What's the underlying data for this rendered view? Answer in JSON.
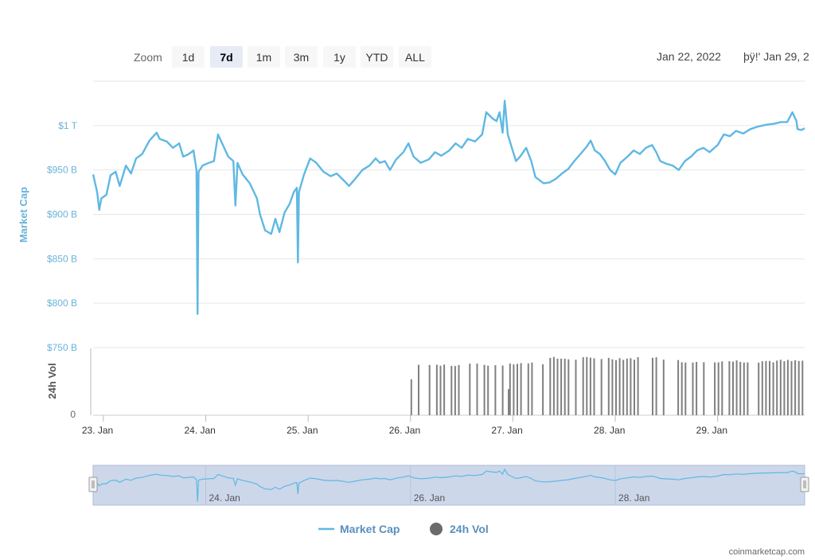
{
  "toolbar": {
    "zoom_label": "Zoom",
    "buttons": [
      "1d",
      "7d",
      "1m",
      "3m",
      "1y",
      "YTD",
      "ALL"
    ],
    "active": "7d",
    "range_from": "Jan 22, 2022",
    "range_to": "þÿ!' Jan 29, 2"
  },
  "legend": {
    "market_cap": "Market Cap",
    "volume": "24h Vol"
  },
  "credit": "coinmarketcap.com",
  "colors": {
    "market_cap": "#5fb8e3",
    "volume": "#808080",
    "navigator_fill": "#ccd7ea",
    "grid": "#e6e6e6"
  },
  "chart_data": {
    "type": "line",
    "title": "",
    "ylabel": "Market Cap",
    "vol_label": "24h Vol",
    "ylim_billions": [
      750,
      1050
    ],
    "y_ticks": [
      "$1 T",
      "$950 B",
      "$900 B",
      "$850 B",
      "$800 B",
      "$750 B"
    ],
    "y_tick_values": [
      1000,
      950,
      900,
      850,
      800,
      750
    ],
    "vol_ticks": [
      "0"
    ],
    "x_ticks": [
      "23. Jan",
      "24. Jan",
      "25. Jan",
      "26. Jan",
      "27. Jan",
      "28. Jan",
      "29. Jan"
    ],
    "navigator_ticks": [
      "24. Jan",
      "26. Jan",
      "28. Jan"
    ],
    "x_range_days": [
      22.9,
      29.85
    ],
    "series": [
      {
        "name": "Market Cap",
        "unit": "billion USD",
        "points": [
          [
            22.9,
            945
          ],
          [
            22.94,
            925
          ],
          [
            22.96,
            905
          ],
          [
            22.98,
            918
          ],
          [
            23.03,
            922
          ],
          [
            23.07,
            944
          ],
          [
            23.12,
            948
          ],
          [
            23.16,
            932
          ],
          [
            23.22,
            955
          ],
          [
            23.27,
            946
          ],
          [
            23.32,
            963
          ],
          [
            23.38,
            968
          ],
          [
            23.45,
            983
          ],
          [
            23.52,
            992
          ],
          [
            23.55,
            985
          ],
          [
            23.62,
            982
          ],
          [
            23.68,
            975
          ],
          [
            23.74,
            980
          ],
          [
            23.78,
            965
          ],
          [
            23.82,
            967
          ],
          [
            23.86,
            970
          ],
          [
            23.88,
            972
          ],
          [
            23.91,
            950
          ],
          [
            23.92,
            788
          ],
          [
            23.93,
            948
          ],
          [
            23.97,
            955
          ],
          [
            24.03,
            958
          ],
          [
            24.08,
            960
          ],
          [
            24.12,
            990
          ],
          [
            24.16,
            980
          ],
          [
            24.22,
            965
          ],
          [
            24.27,
            960
          ],
          [
            24.29,
            910
          ],
          [
            24.31,
            958
          ],
          [
            24.36,
            945
          ],
          [
            24.43,
            935
          ],
          [
            24.5,
            918
          ],
          [
            24.53,
            900
          ],
          [
            24.58,
            882
          ],
          [
            24.64,
            878
          ],
          [
            24.68,
            895
          ],
          [
            24.72,
            880
          ],
          [
            24.77,
            902
          ],
          [
            24.82,
            912
          ],
          [
            24.86,
            925
          ],
          [
            24.89,
            930
          ],
          [
            24.9,
            846
          ],
          [
            24.91,
            925
          ],
          [
            24.96,
            945
          ],
          [
            25.02,
            963
          ],
          [
            25.08,
            958
          ],
          [
            25.15,
            948
          ],
          [
            25.22,
            943
          ],
          [
            25.28,
            946
          ],
          [
            25.35,
            938
          ],
          [
            25.4,
            932
          ],
          [
            25.46,
            940
          ],
          [
            25.53,
            950
          ],
          [
            25.6,
            955
          ],
          [
            25.66,
            963
          ],
          [
            25.7,
            958
          ],
          [
            25.75,
            960
          ],
          [
            25.8,
            950
          ],
          [
            25.86,
            962
          ],
          [
            25.93,
            970
          ],
          [
            25.98,
            980
          ],
          [
            26.03,
            965
          ],
          [
            26.1,
            958
          ],
          [
            26.18,
            962
          ],
          [
            26.24,
            970
          ],
          [
            26.3,
            966
          ],
          [
            26.38,
            972
          ],
          [
            26.44,
            980
          ],
          [
            26.5,
            975
          ],
          [
            26.56,
            985
          ],
          [
            26.63,
            982
          ],
          [
            26.7,
            990
          ],
          [
            26.74,
            1015
          ],
          [
            26.8,
            1008
          ],
          [
            26.84,
            1005
          ],
          [
            26.87,
            1015
          ],
          [
            26.9,
            992
          ],
          [
            26.92,
            1028
          ],
          [
            26.95,
            990
          ],
          [
            26.99,
            975
          ],
          [
            27.03,
            960
          ],
          [
            27.07,
            965
          ],
          [
            27.13,
            975
          ],
          [
            27.18,
            960
          ],
          [
            27.22,
            942
          ],
          [
            27.3,
            935
          ],
          [
            27.36,
            936
          ],
          [
            27.42,
            940
          ],
          [
            27.48,
            946
          ],
          [
            27.54,
            951
          ],
          [
            27.6,
            960
          ],
          [
            27.66,
            968
          ],
          [
            27.72,
            976
          ],
          [
            27.76,
            983
          ],
          [
            27.8,
            972
          ],
          [
            27.85,
            968
          ],
          [
            27.9,
            960
          ],
          [
            27.95,
            950
          ],
          [
            28.0,
            945
          ],
          [
            28.05,
            958
          ],
          [
            28.12,
            965
          ],
          [
            28.18,
            972
          ],
          [
            28.24,
            968
          ],
          [
            28.3,
            975
          ],
          [
            28.36,
            978
          ],
          [
            28.4,
            970
          ],
          [
            28.44,
            960
          ],
          [
            28.5,
            957
          ],
          [
            28.56,
            955
          ],
          [
            28.62,
            950
          ],
          [
            28.68,
            960
          ],
          [
            28.74,
            965
          ],
          [
            28.8,
            972
          ],
          [
            28.86,
            975
          ],
          [
            28.92,
            970
          ],
          [
            29.0,
            978
          ],
          [
            29.06,
            990
          ],
          [
            29.12,
            988
          ],
          [
            29.18,
            994
          ],
          [
            29.25,
            991
          ],
          [
            29.32,
            996
          ],
          [
            29.4,
            999
          ],
          [
            29.48,
            1001
          ],
          [
            29.55,
            1002
          ],
          [
            29.62,
            1004
          ],
          [
            29.68,
            1004
          ],
          [
            29.73,
            1015
          ],
          [
            29.77,
            1005
          ],
          [
            29.78,
            996
          ],
          [
            29.82,
            995
          ],
          [
            29.85,
            997
          ]
        ]
      },
      {
        "name": "24h Vol",
        "unit": "relative",
        "first_day": 26.0,
        "bars_per_day": 28,
        "last_day": 29.85,
        "missing_ratio": 0.3,
        "level_segments": [
          [
            26.0,
            26.9,
            0.77
          ],
          [
            26.9,
            27.3,
            0.8
          ],
          [
            27.3,
            28.5,
            0.87
          ],
          [
            28.5,
            29.85,
            0.83
          ]
        ],
        "low_bars": [
          [
            26.0,
            0.55
          ],
          [
            26.95,
            0.4
          ]
        ]
      }
    ]
  }
}
